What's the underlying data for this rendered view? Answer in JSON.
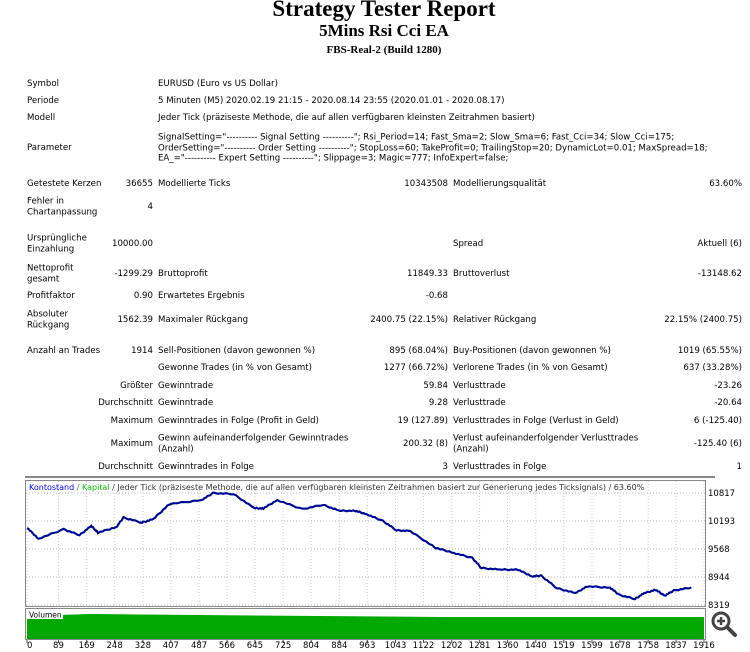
{
  "report": {
    "title": "Strategy Tester Report",
    "ea_name": "5Mins Rsi Cci EA",
    "server": "FBS-Real-2 (Build 1280)",
    "rows": [
      {
        "l1": "Symbol",
        "l2": "EURUSD (Euro vs US Dollar)"
      },
      {
        "l1": "Periode",
        "l2": "5 Minuten (M5) 2020.02.19 21:15 - 2020.08.14 23:55 (2020.01.01 - 2020.08.17)"
      },
      {
        "l1": "Modell",
        "l2": "Jeder Tick (präziseste Methode, die auf allen verfügbaren kleinsten Zeitrahmen basiert)"
      },
      {
        "l1": "Parameter",
        "l2": "SignalSetting=\"---------- Signal Setting ----------\"; Rsi_Period=14; Fast_Sma=2; Slow_Sma=6; Fast_Cci=34; Slow_Cci=175;\nOrderSetting=\"---------- Order Setting ----------\"; StopLoss=60; TakeProfit=0; TrailingStop=20; DynamicLot=0.01; MaxSpread=18;\nEA_=\"---------- Expert Setting ----------\"; Slippage=3; Magic=777; InfoExpert=false;"
      },
      {
        "l1": "Getestete Kerzen",
        "v1": "36655",
        "l2": "Modellierte Ticks",
        "v2": "10343508",
        "l3": "Modellierungsqualität",
        "v3": "63.60%"
      },
      {
        "l1": "Fehler in\nChartanpassung",
        "v1": "4"
      },
      {
        "l1": "Ursprüngliche\nEinzahlung",
        "v1": "10000.00",
        "l3": "Spread",
        "v3": "Aktuell (6)"
      },
      {
        "l1": "Nettoprofit\ngesamt",
        "v1": "-1299.29",
        "l2": "Bruttoprofit",
        "v2": "11849.33",
        "l3": "Bruttoverlust",
        "v3": "-13148.62"
      },
      {
        "l1": "Profitfaktor",
        "v1": "0.90",
        "l2": "Erwartetes Ergebnis",
        "v2": "-0.68"
      },
      {
        "l1": "Absoluter\nRückgang",
        "v1": "1562.39",
        "l2": "Maximaler Rückgang",
        "v2": "2400.75 (22.15%)",
        "l3": "Relativer Rückgang",
        "v3": "22.15% (2400.75)"
      },
      {
        "l1": "Anzahl an Trades",
        "v1": "1914",
        "l2": "Sell-Positionen (davon gewonnen %)",
        "v2": "895 (68.04%)",
        "l3": "Buy-Positionen (davon gewonnen %)",
        "v3": "1019 (65.55%)"
      },
      {
        "l2": "Gewonne Trades (in % von Gesamt)",
        "v2": "1277 (66.72%)",
        "l3": "Verlorene Trades (in % von Gesamt)",
        "v3": "637 (33.28%)"
      },
      {
        "v1": "Größter",
        "l2": "Gewinntrade",
        "v2": "59.84",
        "l3": "Verlusttrade",
        "v3": "-23.26"
      },
      {
        "v1": "Durchschnitt",
        "l2": "Gewinntrade",
        "v2": "9.28",
        "l3": "Verlusttrade",
        "v3": "-20.64"
      },
      {
        "v1": "Maximum",
        "l2": "Gewinntrades in Folge (Profit in Geld)",
        "v2": "19 (127.89)",
        "l3": "Verlusttrades in Folge (Verlust in Geld)",
        "v3": "6 (-125.40)"
      },
      {
        "v1": "Maximum",
        "l2": "Gewinn aufeinanderfolgender Gewinntrades\n(Anzahl)",
        "v2": "200.32 (8)",
        "l3": "Verlust aufeinanderfolgender Verlusttrades\n(Anzahl)",
        "v3": "-125.40 (6)"
      },
      {
        "v1": "Durchschnitt",
        "l2": "Gewinntrades in Folge",
        "v2": "3",
        "l3": "Verlusttrades in Folge",
        "v3": "1"
      }
    ]
  },
  "chart_data": {
    "type": "line",
    "legend": {
      "balance": "Kontostand",
      "separator1": " / ",
      "equity": "Kapital",
      "info": " / Jeder Tick (präziseste Methode, die auf allen verfügbaren kleinsten Zeitrahmen basiert zur Generierung jedes Ticksignals) / 63.60%"
    },
    "colors": {
      "balance": "#0000a0",
      "equity": "#00b000",
      "volume": "#00a800",
      "legend_balance": "#0000ff",
      "legend_equity": "#00c000"
    },
    "volume_label": "Volumen",
    "ylim": [
      8319,
      10817
    ],
    "xlim": [
      0,
      1916
    ],
    "y_ticks": [
      "10817",
      "10193",
      "9568",
      "8944",
      "8319"
    ],
    "x_ticks": [
      "0",
      "89",
      "169",
      "248",
      "328",
      "407",
      "487",
      "566",
      "645",
      "725",
      "804",
      "884",
      "963",
      "1043",
      "1122",
      "1202",
      "1281",
      "1360",
      "1440",
      "1519",
      "1599",
      "1678",
      "1758",
      "1837",
      "1916"
    ],
    "grid": true,
    "series": [
      {
        "x": [
          0,
          32,
          104,
          149,
          182,
          201,
          253,
          273,
          325,
          357,
          403,
          494,
          527,
          584,
          643,
          669,
          708,
          779,
          838,
          883,
          929,
          961,
          1007,
          1046,
          1084,
          1156,
          1208,
          1260,
          1286,
          1338,
          1390,
          1429,
          1455,
          1500,
          1552,
          1585,
          1650,
          1676,
          1721,
          1747,
          1779,
          1805,
          1831,
          1880
        ],
        "y": [
          10044,
          9797,
          10007,
          9879,
          10082,
          9932,
          10059,
          10269,
          10157,
          10232,
          10570,
          10660,
          10817,
          10795,
          10479,
          10472,
          10660,
          10457,
          10555,
          10420,
          10420,
          10345,
          10194,
          9984,
          9969,
          9594,
          9482,
          9369,
          9144,
          9107,
          9107,
          8957,
          8972,
          8694,
          8582,
          8732,
          8709,
          8544,
          8454,
          8582,
          8657,
          8529,
          8642,
          8709
        ]
      }
    ],
    "zoom_icon": "magnifier-plus-icon"
  }
}
